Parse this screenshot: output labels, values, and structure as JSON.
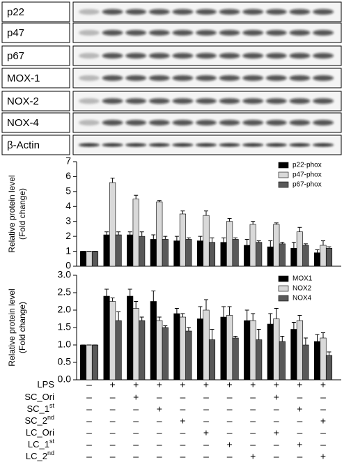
{
  "blots": {
    "labels": [
      "p22",
      "p47",
      "p67",
      "MOX-1",
      "NOX-2",
      "NOX-4",
      "β-Actin"
    ]
  },
  "chart_data": [
    {
      "type": "bar",
      "ylabel": [
        "Relative protein level",
        "(Fold change)"
      ],
      "ylim": [
        0,
        7
      ],
      "yticks": [
        0,
        1,
        2,
        3,
        4,
        5,
        6,
        7
      ],
      "legend": "upper right",
      "series": [
        {
          "name": "p22-phox",
          "color": "#000000",
          "values": [
            1,
            2.1,
            2.1,
            1.8,
            1.7,
            1.7,
            1.6,
            1.4,
            1.3,
            1.2,
            0.9
          ],
          "errors": [
            0,
            0.2,
            0.2,
            0.3,
            0.3,
            0.3,
            0.3,
            0.4,
            0.4,
            0.4,
            0.2
          ]
        },
        {
          "name": "p47-phox",
          "color": "#d9d9d9",
          "values": [
            1,
            5.6,
            4.5,
            4.3,
            3.5,
            3.4,
            3.0,
            2.8,
            2.8,
            2.3,
            1.4
          ],
          "errors": [
            0,
            0.3,
            0.25,
            0.1,
            0.2,
            0.3,
            0.2,
            0.2,
            0.1,
            0.3,
            0.3
          ]
        },
        {
          "name": "p67-phox",
          "color": "#595959",
          "values": [
            1,
            2.1,
            2.0,
            1.8,
            1.8,
            1.6,
            1.8,
            1.6,
            1.5,
            1.4,
            1.2
          ],
          "errors": [
            0,
            0.2,
            0.3,
            0.2,
            0.1,
            0.3,
            0.1,
            0.1,
            0.1,
            0.1,
            0.1
          ]
        }
      ]
    },
    {
      "type": "bar",
      "ylabel": [
        "Relative protein level",
        "(Fold change)"
      ],
      "ylim": [
        0,
        3
      ],
      "yticks": [
        {
          "value": 0,
          "label": "0.0"
        },
        {
          "value": 0.5,
          "label": "0.5"
        },
        {
          "value": 1,
          "label": "1.0"
        },
        {
          "value": 1.5,
          "label": "1.5"
        },
        {
          "value": 2,
          "label": "2.0"
        },
        {
          "value": 2.5,
          "label": "2.5"
        },
        {
          "value": 3,
          "label": "3.0"
        }
      ],
      "legend": "upper right",
      "series": [
        {
          "name": "MOX1",
          "color": "#000000",
          "values": [
            1,
            2.4,
            2.4,
            2.25,
            1.9,
            1.75,
            1.8,
            1.7,
            1.6,
            1.45,
            1.1
          ],
          "errors": [
            0,
            0.2,
            0.2,
            0.3,
            0.15,
            0.35,
            0.3,
            0.3,
            0.3,
            0.2,
            0.2
          ]
        },
        {
          "name": "NOX2",
          "color": "#d9d9d9",
          "values": [
            1,
            2.25,
            2.05,
            1.7,
            1.8,
            2.0,
            1.85,
            1.7,
            1.75,
            1.7,
            1.2
          ],
          "errors": [
            0,
            0.1,
            0.2,
            0.1,
            0.1,
            0.3,
            0.25,
            0.2,
            0.3,
            0.15,
            0.15
          ]
        },
        {
          "name": "NOX4",
          "color": "#595959",
          "values": [
            1,
            1.7,
            1.7,
            1.5,
            1.4,
            1.15,
            1.2,
            1.15,
            1.1,
            1.0,
            0.7
          ],
          "errors": [
            0,
            0.25,
            0.1,
            0.05,
            0.1,
            0.3,
            0.05,
            0.3,
            0.15,
            0.2,
            0.1
          ]
        }
      ]
    }
  ],
  "treatments": {
    "rows": [
      {
        "label": "LPS",
        "marks": [
          "–",
          "+",
          "+",
          "+",
          "+",
          "+",
          "+",
          "+",
          "+",
          "+",
          "+"
        ]
      },
      {
        "label": "SC_Ori",
        "marks": [
          "–",
          "–",
          "+",
          "–",
          "–",
          "–",
          "–",
          "–",
          "+",
          "–",
          "–"
        ]
      },
      {
        "label": "SC_1",
        "sup": "st",
        "marks": [
          "–",
          "–",
          "–",
          "+",
          "–",
          "–",
          "–",
          "–",
          "–",
          "+",
          "–"
        ]
      },
      {
        "label": "SC_2",
        "sup": "nd",
        "marks": [
          "–",
          "–",
          "–",
          "–",
          "+",
          "–",
          "–",
          "–",
          "–",
          "–",
          "+"
        ]
      },
      {
        "label": "LC_Ori",
        "marks": [
          "–",
          "–",
          "–",
          "–",
          "–",
          "+",
          "–",
          "–",
          "+",
          "–",
          "–"
        ]
      },
      {
        "label": "LC_1",
        "sup": "st",
        "marks": [
          "–",
          "–",
          "–",
          "–",
          "–",
          "–",
          "+",
          "–",
          "–",
          "+",
          "–"
        ]
      },
      {
        "label": "LC_2",
        "sup": "nd",
        "marks": [
          "–",
          "–",
          "–",
          "–",
          "–",
          "–",
          "–",
          "+",
          "–",
          "–",
          "+"
        ]
      }
    ]
  }
}
